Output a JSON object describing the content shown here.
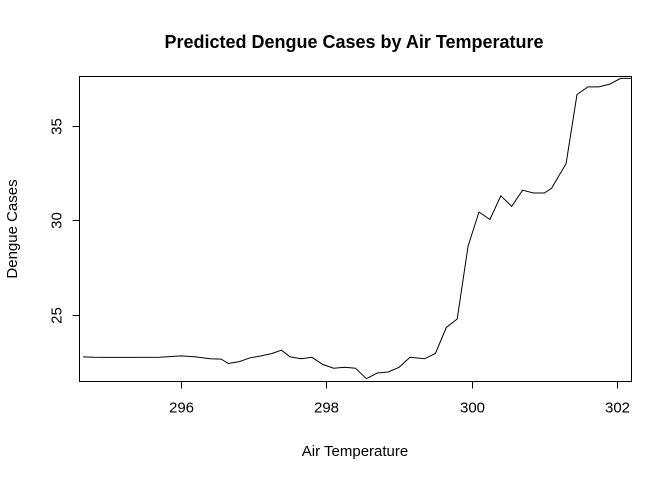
{
  "chart_data": {
    "type": "line",
    "title": "Predicted Dengue Cases by Air Temperature",
    "xlabel": "Air Temperature",
    "ylabel": "Dengue Cases",
    "xlim": [
      294.6,
      302.2
    ],
    "ylim": [
      21.5,
      37.6
    ],
    "xticks": [
      296,
      298,
      300,
      302
    ],
    "yticks": [
      25,
      30,
      35
    ],
    "grid": false,
    "series": [
      {
        "x": [
          294.65,
          294.8,
          295.0,
          295.3,
          295.7,
          296.0,
          296.2,
          296.4,
          296.55,
          296.65,
          296.8,
          296.95,
          297.1,
          297.25,
          297.38,
          297.5,
          297.65,
          297.8,
          297.95,
          298.1,
          298.25,
          298.4,
          298.55,
          298.7,
          298.85,
          299.0,
          299.15,
          299.35,
          299.5,
          299.65,
          299.8,
          299.95,
          300.1,
          300.25,
          300.4,
          300.55,
          300.7,
          300.85,
          301.0,
          301.1,
          301.3,
          301.45,
          301.6,
          301.75,
          301.9,
          302.05,
          302.2
        ],
        "values": [
          22.8,
          22.78,
          22.77,
          22.77,
          22.78,
          22.85,
          22.8,
          22.7,
          22.68,
          22.45,
          22.55,
          22.75,
          22.85,
          22.98,
          23.15,
          22.8,
          22.7,
          22.78,
          22.4,
          22.2,
          22.25,
          22.2,
          21.65,
          21.95,
          22.0,
          22.25,
          22.78,
          22.7,
          22.98,
          24.35,
          24.8,
          28.65,
          30.45,
          30.05,
          31.3,
          30.75,
          31.6,
          31.45,
          31.45,
          31.7,
          33.0,
          36.65,
          37.05,
          37.05,
          37.2,
          37.5,
          37.5
        ]
      }
    ]
  }
}
